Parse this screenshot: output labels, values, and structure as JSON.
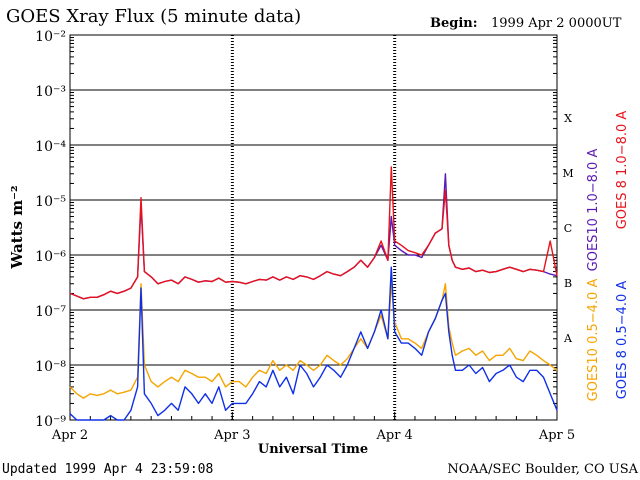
{
  "header": {
    "title": "GOES Xray Flux (5 minute data)",
    "begin_label": "Begin:",
    "begin_value": "1999 Apr 2 0000UT"
  },
  "footer": {
    "updated": "Updated 1999 Apr  4 23:59:08",
    "credit": "NOAA/SEC Boulder, CO USA"
  },
  "colors": {
    "goes8_long": "#e8121b",
    "goes10_long": "#5a1ab5",
    "goes10_short": "#f5a400",
    "goes8_short": "#1030e8",
    "gridline": "#000000"
  },
  "chart_data": {
    "type": "line",
    "title": "GOES Xray Flux (5 minute data)",
    "xlabel": "Universal Time",
    "ylabel": "Watts m⁻²",
    "y_scale": "log",
    "ylim": [
      1e-09,
      0.01
    ],
    "y_ticks": [
      {
        "value": 1e-09,
        "label": "10⁻⁹"
      },
      {
        "value": 1e-08,
        "label": "10⁻⁸"
      },
      {
        "value": 1e-07,
        "label": "10⁻⁷"
      },
      {
        "value": 1e-06,
        "label": "10⁻⁶"
      },
      {
        "value": 1e-05,
        "label": "10⁻⁵"
      },
      {
        "value": 0.0001,
        "label": "10⁻⁴"
      },
      {
        "value": 0.001,
        "label": "10⁻³"
      },
      {
        "value": 0.01,
        "label": "10⁻²"
      }
    ],
    "xlim": [
      0,
      72
    ],
    "x_unit": "hours since 1999 Apr 2 0000UT",
    "x_ticks": [
      {
        "value": 0,
        "label": "Apr 2"
      },
      {
        "value": 24,
        "label": "Apr 3"
      },
      {
        "value": 48,
        "label": "Apr 4"
      },
      {
        "value": 72,
        "label": "Apr 5"
      }
    ],
    "flare_classes": [
      {
        "label": "A",
        "value": 3.2e-08
      },
      {
        "label": "B",
        "value": 3.2e-07
      },
      {
        "label": "C",
        "value": 3.2e-06
      },
      {
        "label": "M",
        "value": 3.2e-05
      },
      {
        "label": "X",
        "value": 0.00032
      }
    ],
    "legend": [
      {
        "name": "GOES10 1.0−8.0 A",
        "color": "#5a1ab5"
      },
      {
        "name": "GOES 8 1.0−8.0 A",
        "color": "#e8121b"
      },
      {
        "name": "GOES10 0.5−4.0 A",
        "color": "#f5a400"
      },
      {
        "name": "GOES 8 0.5−4.0 A",
        "color": "#1030e8"
      }
    ],
    "series": [
      {
        "name": "GOES10 0.5−4.0 A",
        "color": "#f5a400",
        "x": [
          0,
          1,
          2,
          3,
          4,
          5,
          6,
          7,
          8,
          9,
          10,
          10.5,
          11,
          12,
          13,
          14,
          15,
          16,
          17,
          18,
          19,
          20,
          21,
          22,
          23,
          24,
          25,
          26,
          27,
          28,
          29,
          30,
          31,
          32,
          33,
          34,
          35,
          36,
          37,
          38,
          39,
          40,
          41,
          42,
          43,
          44,
          45,
          46,
          47,
          47.5,
          48,
          49,
          50,
          51,
          52,
          53,
          54,
          55,
          55.5,
          56,
          56.5,
          57,
          58,
          59,
          60,
          61,
          62,
          63,
          64,
          65,
          66,
          67,
          68,
          69,
          70,
          71,
          72
        ],
        "y": [
          4e-09,
          3e-09,
          2.5e-09,
          3e-09,
          2.8e-09,
          3e-09,
          3.5e-09,
          3e-09,
          3.2e-09,
          3.5e-09,
          6e-09,
          3e-07,
          1e-08,
          5e-09,
          4e-09,
          5e-09,
          6e-09,
          5e-09,
          8e-09,
          7e-09,
          6e-09,
          6e-09,
          5e-09,
          7e-09,
          4e-09,
          5e-09,
          5e-09,
          4e-09,
          6e-09,
          8e-09,
          7e-09,
          1.2e-08,
          8e-09,
          1e-08,
          8e-09,
          1.2e-08,
          1e-08,
          8e-09,
          1e-08,
          1.5e-08,
          1.2e-08,
          1e-08,
          1.3e-08,
          2e-08,
          3e-08,
          2e-08,
          4e-08,
          8e-08,
          3e-08,
          3e-07,
          6e-08,
          3e-08,
          3e-08,
          2.5e-08,
          2e-08,
          4e-08,
          7e-08,
          1.5e-07,
          3e-07,
          5e-08,
          2.5e-08,
          1.5e-08,
          1.8e-08,
          2e-08,
          1.5e-08,
          1.8e-08,
          1.2e-08,
          1.5e-08,
          1.5e-08,
          2e-08,
          1.3e-08,
          1.2e-08,
          1.8e-08,
          1.5e-08,
          1.2e-08,
          1e-08,
          8e-09
        ]
      },
      {
        "name": "GOES 8 0.5−4.0 A",
        "color": "#1030e8",
        "x": [
          0,
          1,
          2,
          3,
          4,
          5,
          6,
          7,
          8,
          9,
          10,
          10.5,
          11,
          12,
          13,
          14,
          15,
          16,
          17,
          18,
          19,
          20,
          21,
          22,
          23,
          24,
          25,
          26,
          27,
          28,
          29,
          30,
          31,
          32,
          33,
          34,
          35,
          36,
          37,
          38,
          39,
          40,
          41,
          42,
          43,
          44,
          45,
          46,
          47,
          47.5,
          48,
          49,
          50,
          51,
          52,
          53,
          54,
          55,
          55.5,
          56,
          56.5,
          57,
          58,
          59,
          60,
          61,
          62,
          63,
          64,
          65,
          66,
          67,
          68,
          69,
          70,
          71,
          72
        ],
        "y": [
          1.3e-09,
          1e-09,
          1e-09,
          1e-09,
          1e-09,
          1e-09,
          1.2e-09,
          1e-09,
          1e-09,
          1.5e-09,
          4e-09,
          2.5e-07,
          3e-09,
          2e-09,
          1.2e-09,
          1.5e-09,
          2e-09,
          1.5e-09,
          4e-09,
          3e-09,
          2e-09,
          3e-09,
          2e-09,
          4e-09,
          1.5e-09,
          2e-09,
          2e-09,
          2e-09,
          3e-09,
          5e-09,
          4e-09,
          8e-09,
          4e-09,
          6e-09,
          3e-09,
          1e-08,
          7e-09,
          4e-09,
          6e-09,
          1e-08,
          8e-09,
          6e-09,
          1e-08,
          2e-08,
          4e-08,
          2e-08,
          4e-08,
          1e-07,
          3e-08,
          6e-07,
          4e-08,
          2.5e-08,
          2.5e-08,
          2e-08,
          1.5e-08,
          4e-08,
          7e-08,
          1.5e-07,
          2e-07,
          4e-08,
          1.5e-08,
          8e-09,
          8e-09,
          1e-08,
          7e-09,
          9e-09,
          5e-09,
          7e-09,
          8e-09,
          1e-08,
          6e-09,
          5e-09,
          8e-09,
          8e-09,
          6e-09,
          3e-09,
          1.5e-09
        ]
      },
      {
        "name": "GOES10 1.0−8.0 A",
        "color": "#5a1ab5",
        "x": [
          0,
          1,
          2,
          3,
          4,
          5,
          6,
          7,
          8,
          9,
          10,
          10.5,
          11,
          12,
          13,
          14,
          15,
          16,
          17,
          18,
          19,
          20,
          21,
          22,
          23,
          24,
          25,
          26,
          27,
          28,
          29,
          30,
          31,
          32,
          33,
          34,
          35,
          36,
          37,
          38,
          39,
          40,
          41,
          42,
          43,
          44,
          45,
          46,
          47,
          47.5,
          48,
          49,
          50,
          51,
          52,
          53,
          54,
          55,
          55.5,
          56,
          56.5,
          57,
          58,
          59,
          60,
          61,
          62,
          63,
          64,
          65,
          66,
          67,
          68,
          69,
          70,
          71,
          72
        ],
        "y": [
          2e-07,
          1.8e-07,
          1.6e-07,
          1.7e-07,
          1.7e-07,
          1.9e-07,
          2.2e-07,
          2e-07,
          2.2e-07,
          2.5e-07,
          4e-07,
          8e-06,
          5e-07,
          4e-07,
          3e-07,
          3.3e-07,
          3.5e-07,
          3e-07,
          4e-07,
          3.6e-07,
          3.2e-07,
          3.4e-07,
          3.3e-07,
          3.8e-07,
          3.2e-07,
          3.3e-07,
          3.2e-07,
          3e-07,
          3.3e-07,
          3.6e-07,
          3.5e-07,
          4e-07,
          3.5e-07,
          4e-07,
          3.6e-07,
          4.2e-07,
          4e-07,
          3.6e-07,
          4.2e-07,
          5e-07,
          4.5e-07,
          4.2e-07,
          5e-07,
          6e-07,
          8e-07,
          6e-07,
          9e-07,
          1.5e-06,
          8e-07,
          5e-06,
          1.5e-06,
          1.2e-06,
          1e-06,
          1e-06,
          9e-07,
          1.5e-06,
          2.5e-06,
          3e-06,
          3e-05,
          1.5e-06,
          8e-07,
          6e-07,
          5.5e-07,
          5.8e-07,
          5e-07,
          5.3e-07,
          4.8e-07,
          5e-07,
          5.5e-07,
          6e-07,
          5.5e-07,
          5e-07,
          5.5e-07,
          5.3e-07,
          5e-07,
          4.5e-07,
          4.2e-07
        ]
      },
      {
        "name": "GOES 8 1.0−8.0 A",
        "color": "#e8121b",
        "x": [
          0,
          1,
          2,
          3,
          4,
          5,
          6,
          7,
          8,
          9,
          10,
          10.5,
          11,
          12,
          13,
          14,
          15,
          16,
          17,
          18,
          19,
          20,
          21,
          22,
          23,
          24,
          25,
          26,
          27,
          28,
          29,
          30,
          31,
          32,
          33,
          34,
          35,
          36,
          37,
          38,
          39,
          40,
          41,
          42,
          43,
          44,
          45,
          46,
          47,
          47.5,
          48,
          49,
          50,
          51,
          52,
          53,
          54,
          55,
          55.5,
          56,
          56.5,
          57,
          58,
          59,
          60,
          61,
          62,
          63,
          64,
          65,
          66,
          67,
          68,
          69,
          70,
          71,
          72
        ],
        "y": [
          2e-07,
          1.8e-07,
          1.6e-07,
          1.7e-07,
          1.7e-07,
          1.9e-07,
          2.2e-07,
          2e-07,
          2.2e-07,
          2.5e-07,
          4e-07,
          1.1e-05,
          5e-07,
          4e-07,
          3e-07,
          3.3e-07,
          3.5e-07,
          3e-07,
          4e-07,
          3.6e-07,
          3.2e-07,
          3.4e-07,
          3.3e-07,
          3.8e-07,
          3.2e-07,
          3.3e-07,
          3.2e-07,
          3e-07,
          3.3e-07,
          3.6e-07,
          3.5e-07,
          4e-07,
          3.5e-07,
          4e-07,
          3.6e-07,
          4.2e-07,
          4e-07,
          3.6e-07,
          4.2e-07,
          5e-07,
          4.5e-07,
          4.2e-07,
          5e-07,
          6e-07,
          8e-07,
          6e-07,
          9e-07,
          1.8e-06,
          8e-07,
          4e-05,
          1.8e-06,
          1.5e-06,
          1.2e-06,
          1.1e-06,
          1e-06,
          1.5e-06,
          2.5e-06,
          3e-06,
          1.5e-05,
          1.5e-06,
          8e-07,
          6e-07,
          5.5e-07,
          5.8e-07,
          5e-07,
          5.3e-07,
          4.8e-07,
          5e-07,
          5.5e-07,
          6e-07,
          5.5e-07,
          5e-07,
          5.5e-07,
          5.3e-07,
          5e-07,
          1.8e-06,
          4.2e-07
        ]
      }
    ],
    "grid": true,
    "legend_placement": "right (rotated vertical labels)"
  }
}
